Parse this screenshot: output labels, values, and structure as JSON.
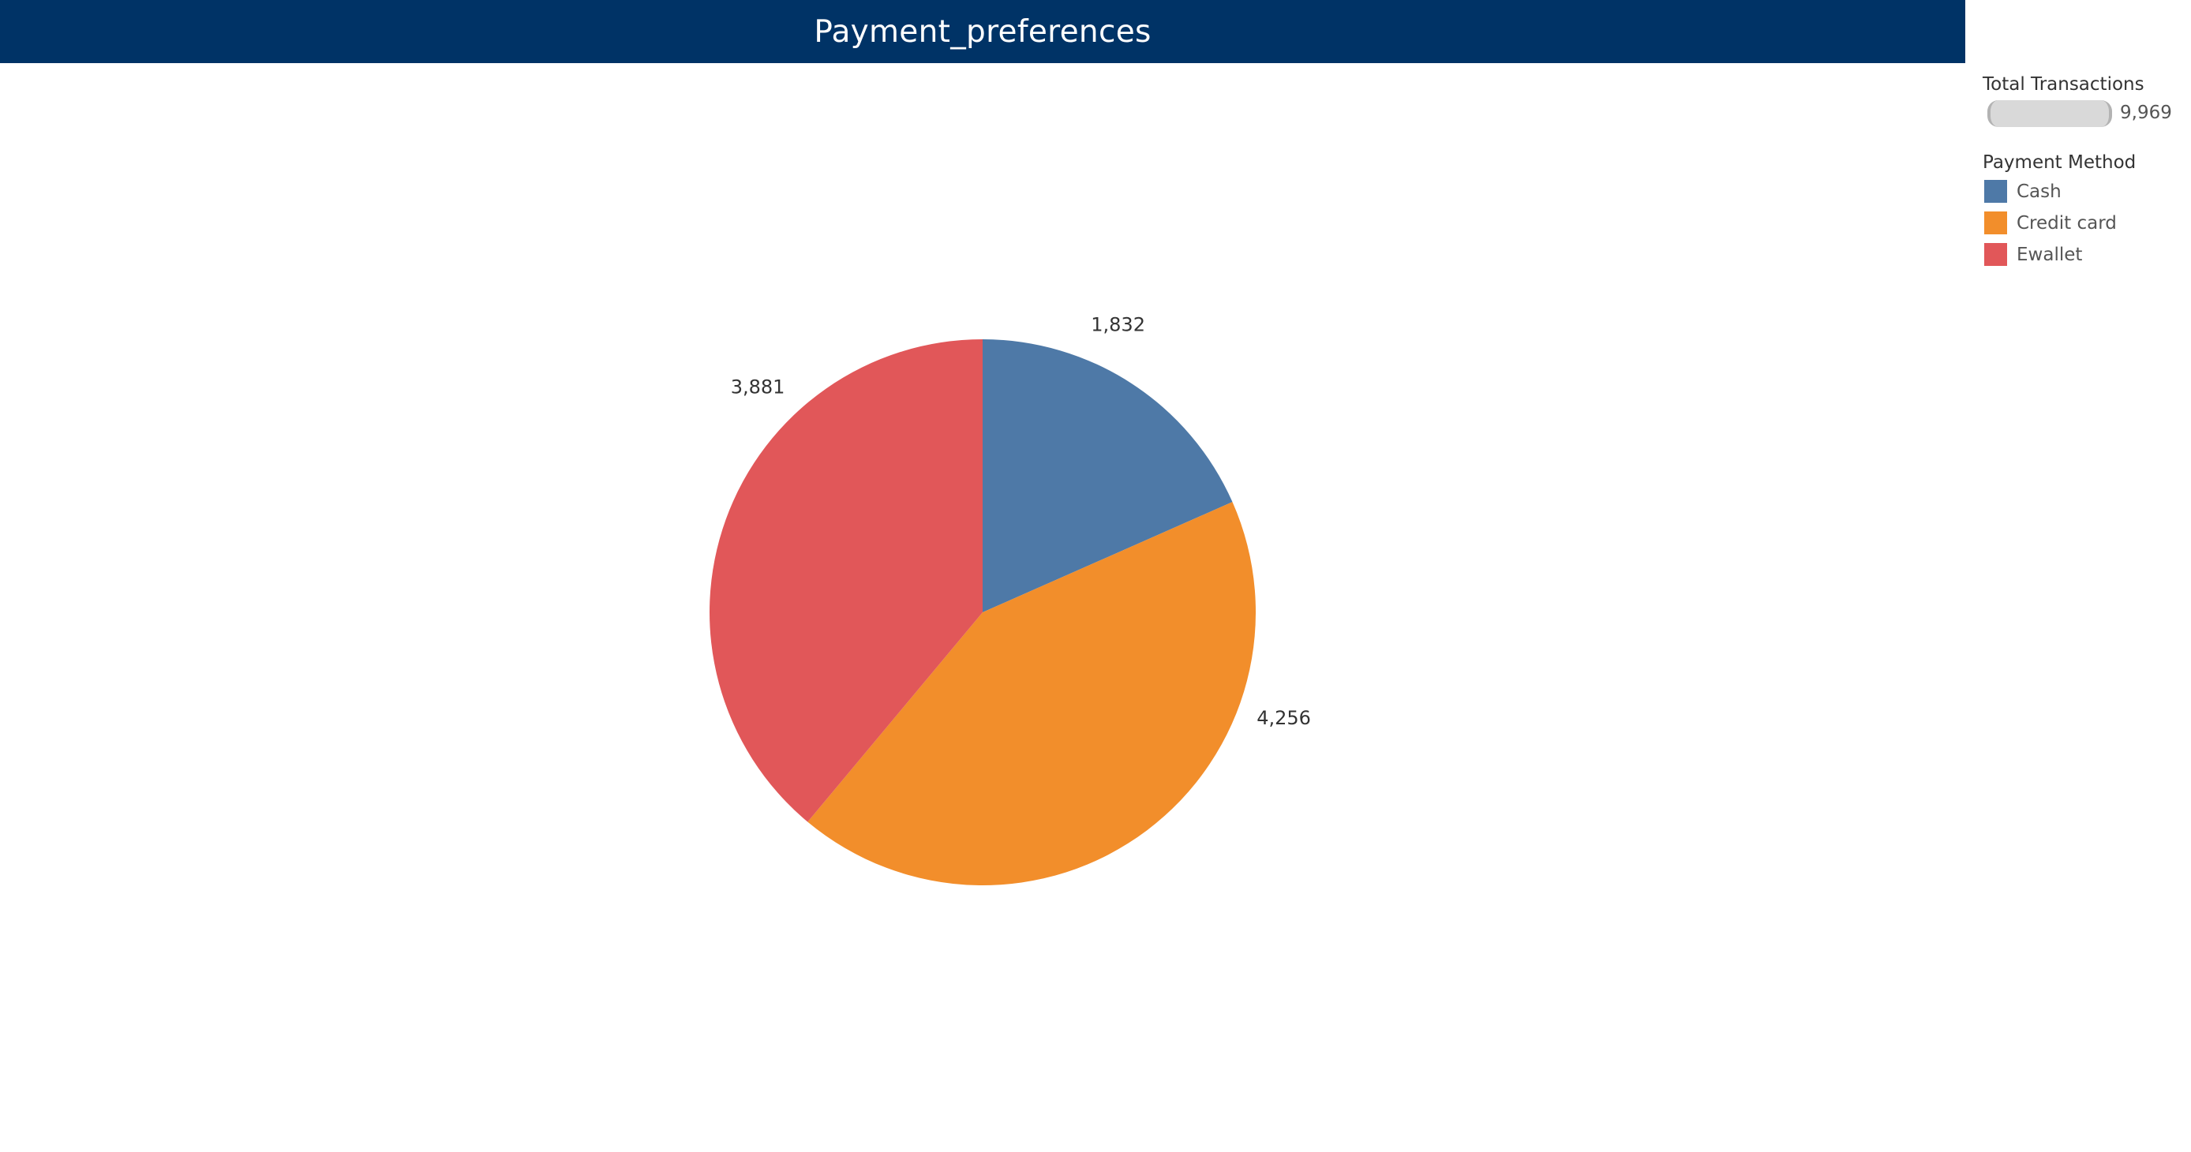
{
  "header": {
    "title": "Payment_preferences"
  },
  "size_legend": {
    "title": "Total Transactions",
    "max_value_label": "9,969"
  },
  "color_legend": {
    "title": "Payment Method",
    "items": [
      {
        "label": "Cash",
        "color": "#4e79a7"
      },
      {
        "label": "Credit card",
        "color": "#f28e2b"
      },
      {
        "label": "Ewallet",
        "color": "#e15759"
      }
    ]
  },
  "chart_data": {
    "type": "pie",
    "title": "Payment_preferences",
    "categories": [
      "Cash",
      "Credit card",
      "Ewallet"
    ],
    "values": [
      1832,
      4256,
      3881
    ],
    "value_labels": [
      "1,832",
      "4,256",
      "3,881"
    ],
    "colors": [
      "#4e79a7",
      "#f28e2b",
      "#e15759"
    ],
    "start_angle": "12 o'clock",
    "direction": "clockwise",
    "legend_placement": "right",
    "size_legend_title": "Total Transactions",
    "color_legend_title": "Payment Method"
  }
}
